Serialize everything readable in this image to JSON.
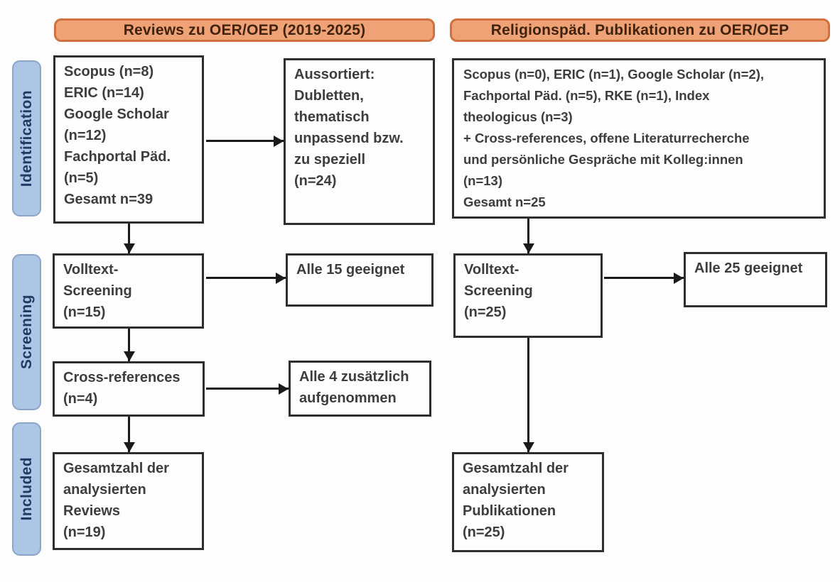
{
  "diagram_type": "PRISMA-style literature search flowchart",
  "colors": {
    "header_fill": "#efa276",
    "header_border": "#d0713f",
    "header_text": "#40230e",
    "stage_fill": "#aec6e6",
    "stage_border": "#8aa5c9",
    "stage_text": "#1f3a63",
    "box_fill": "#fdfdfd",
    "box_border": "#2e2e2e",
    "box_text": "#3d3d3d",
    "arrow": "#1a1a1a"
  },
  "headers": {
    "left": "Reviews zu OER/OEP (2019-2025)",
    "right": "Religionspäd. Publikationen zu OER/OEP"
  },
  "stages": {
    "identification": "Identification",
    "screening": "Screening",
    "included": "Included"
  },
  "boxes": {
    "left_identification": {
      "lines": [
        "Scopus (n=8)",
        "ERIC (n=14)",
        "Google Scholar",
        "(n=12)",
        "Fachportal Päd.",
        "(n=5)",
        "Gesamt n=39"
      ]
    },
    "left_excluded": {
      "lines": [
        "Aussortiert:",
        "Dubletten,",
        "thematisch",
        "unpassend bzw.",
        "zu speziell",
        "(n=24)"
      ]
    },
    "right_identification": {
      "lines": [
        "Scopus (n=0), ERIC (n=1), Google Scholar (n=2),",
        "Fachportal Päd. (n=5), RKE (n=1), Index",
        "theologicus (n=3)",
        "+ Cross-references, offene Literaturrecherche",
        "und persönliche Gespräche mit Kolleg:innen",
        "(n=13)",
        "Gesamt n=25"
      ]
    },
    "left_fulltext": {
      "lines": [
        "Volltext-",
        "Screening",
        "(n=15)"
      ]
    },
    "left_fulltext_result": {
      "lines": [
        "Alle 15 geeignet"
      ]
    },
    "right_fulltext": {
      "lines": [
        "Volltext-",
        "Screening",
        "(n=25)"
      ]
    },
    "right_fulltext_result": {
      "lines": [
        "Alle 25 geeignet"
      ]
    },
    "left_crossref": {
      "lines": [
        "Cross-references",
        "(n=4)"
      ]
    },
    "left_crossref_result": {
      "lines": [
        "Alle 4 zusätzlich",
        "aufgenommen"
      ]
    },
    "left_included": {
      "lines": [
        "Gesamtzahl der",
        "analysierten",
        "Reviews",
        "(n=19)"
      ]
    },
    "right_included": {
      "lines": [
        "Gesamtzahl der",
        "analysierten",
        "Publikationen",
        "(n=25)"
      ]
    }
  }
}
